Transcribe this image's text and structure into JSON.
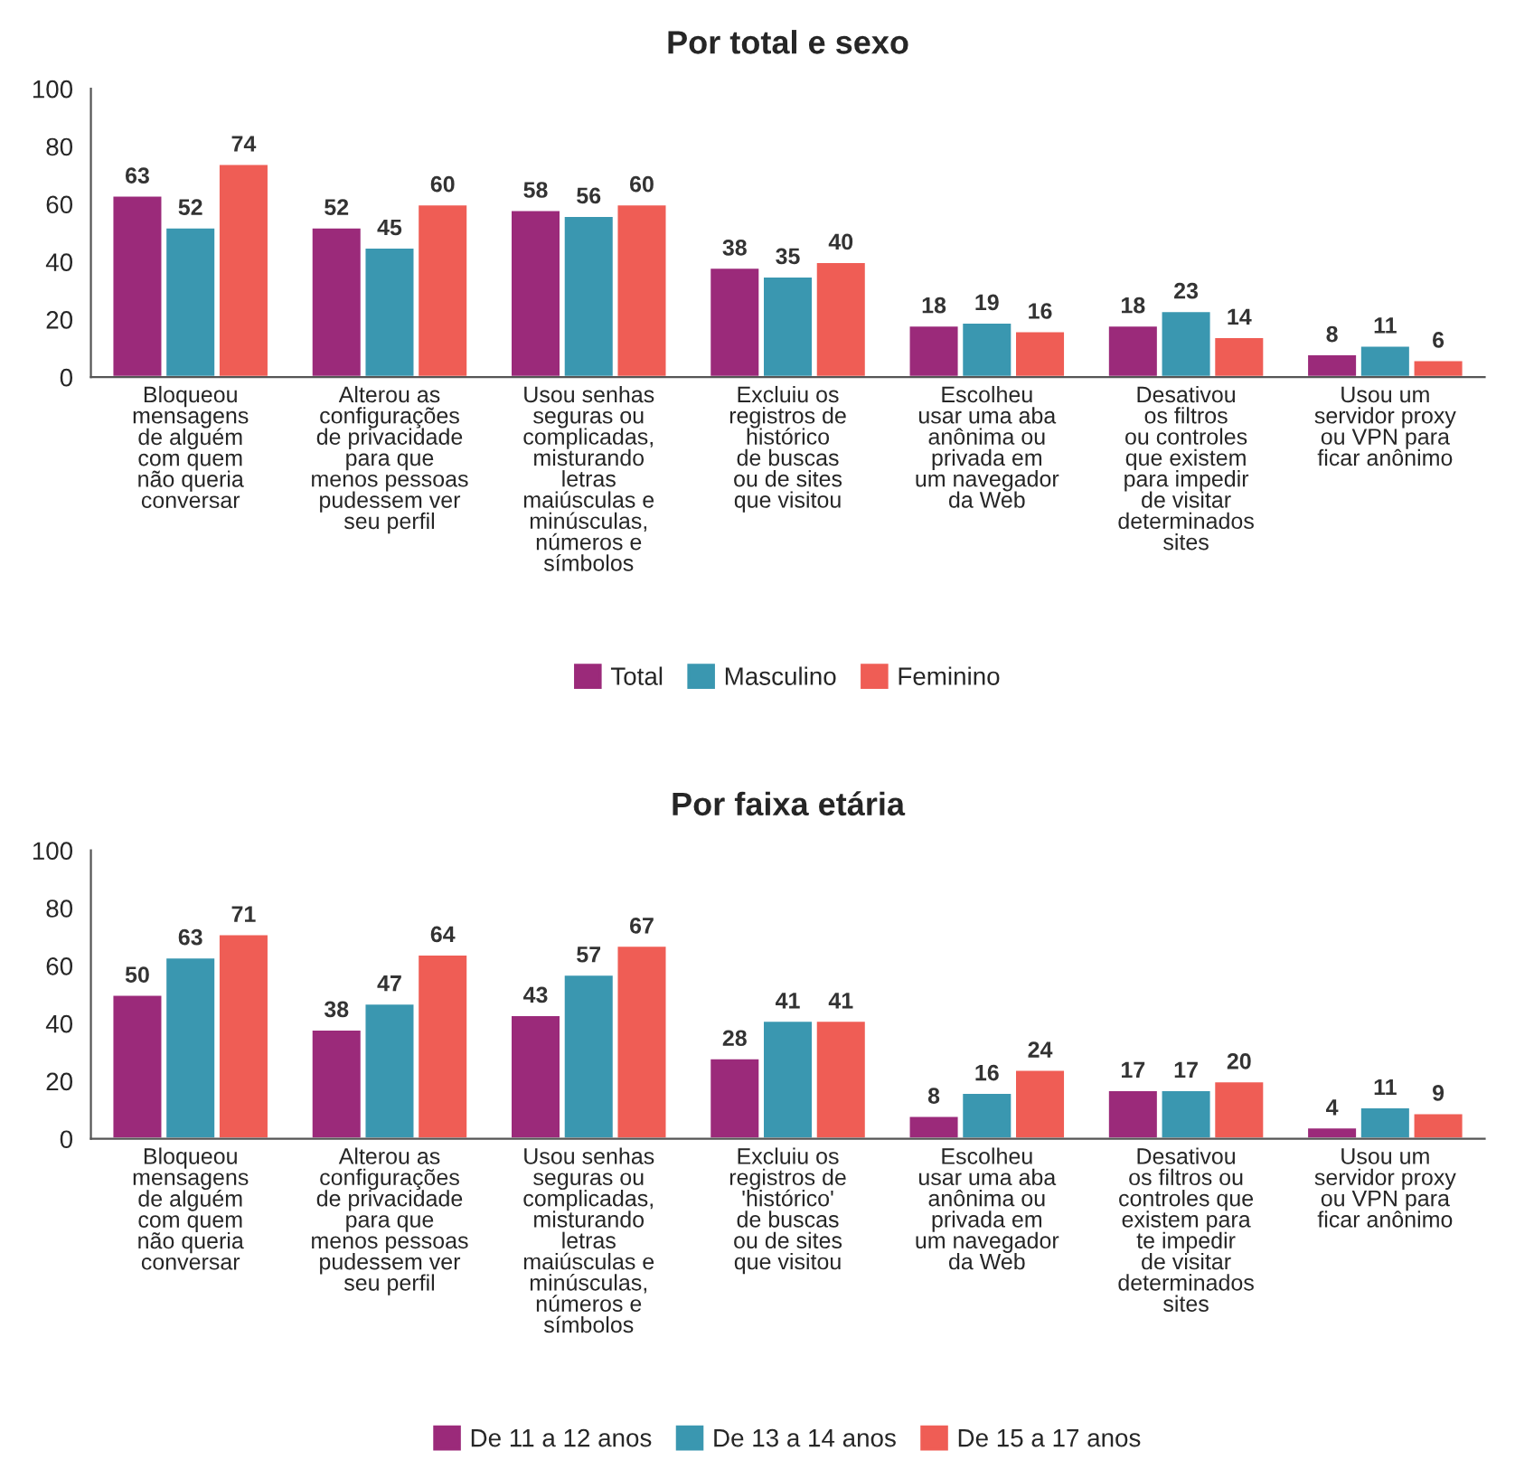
{
  "chart_data": [
    {
      "type": "bar",
      "title": "Por total e sexo",
      "categories": [
        "Bloqueou\nmensagens\nde alguém\ncom quem\nnão queria\nconversar",
        "Alterou as\nconfigurações\nde privacidade\npara que\nmenos pessoas\npudessem ver\nseu perfil",
        "Usou senhas\nseguras ou\ncomplicadas,\nmisturando\nletras\nmaiúsculas e\nminúsculas,\nnúmeros e\nsímbolos",
        "Excluiu os\nregistros de\nhistórico\nde buscas\nou de sites\nque visitou",
        "Escolheu\nusar uma aba\nanônima ou\nprivada em\num navegador\nda Web",
        "Desativou\nos filtros\nou controles\nque existem\npara impedir\nde visitar\ndeterminados\nsites",
        "Usou um\nservidor proxy\nou VPN para\nficar anônimo"
      ],
      "series": [
        {
          "name": "Total",
          "color": "#9b2a7a",
          "values": [
            63,
            52,
            58,
            38,
            18,
            18,
            8
          ]
        },
        {
          "name": "Masculino",
          "color": "#3a97b0",
          "values": [
            52,
            45,
            56,
            35,
            19,
            23,
            11
          ]
        },
        {
          "name": "Feminino",
          "color": "#ef5d55",
          "values": [
            74,
            60,
            60,
            40,
            16,
            14,
            6
          ]
        }
      ],
      "ylim": [
        0,
        100
      ],
      "yticks": [
        0,
        20,
        40,
        60,
        80,
        100
      ],
      "grid": false,
      "legend": "bottom",
      "data_labels": true
    },
    {
      "type": "bar",
      "title": "Por faixa etária",
      "categories": [
        "Bloqueou\nmensagens\nde alguém\ncom quem\nnão queria\nconversar",
        "Alterou as\nconfigurações\nde privacidade\npara que\nmenos pessoas\npudessem ver\nseu perfil",
        "Usou senhas\nseguras ou\ncomplicadas,\nmisturando\nletras\nmaiúsculas e\nminúsculas,\nnúmeros e\nsímbolos",
        "Excluiu os\nregistros de\n'histórico'\nde buscas\nou de sites\nque visitou",
        "Escolheu\nusar uma aba\nanônima ou\nprivada em\num navegador\nda Web",
        "Desativou\nos filtros ou\ncontroles que\nexistem para\nte impedir\nde visitar\ndeterminados\nsites",
        "Usou um\nservidor proxy\nou VPN para\nficar anônimo"
      ],
      "series": [
        {
          "name": "De 11 a 12 anos",
          "color": "#9b2a7a",
          "values": [
            50,
            38,
            43,
            28,
            8,
            17,
            4
          ]
        },
        {
          "name": "De 13 a 14 anos",
          "color": "#3a97b0",
          "values": [
            63,
            47,
            57,
            41,
            16,
            17,
            11
          ]
        },
        {
          "name": "De 15 a 17 anos",
          "color": "#ef5d55",
          "values": [
            71,
            64,
            67,
            41,
            24,
            20,
            9
          ]
        }
      ],
      "ylim": [
        0,
        100
      ],
      "yticks": [
        0,
        20,
        40,
        60,
        80,
        100
      ],
      "grid": false,
      "legend": "bottom",
      "data_labels": true
    }
  ]
}
